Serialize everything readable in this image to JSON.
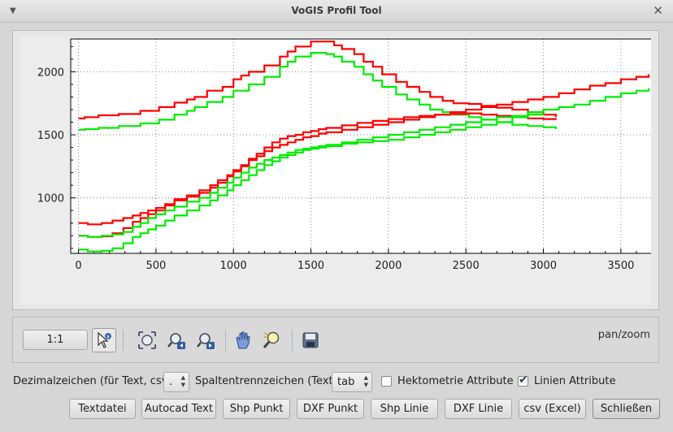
{
  "window": {
    "title": "VoGIS Profil Tool",
    "menu_icon": "chevron-down-icon",
    "close_icon": "close-icon"
  },
  "toolbar": {
    "scale_button": "1:1",
    "mode_label": "pan/zoom",
    "tools": [
      "pointer-info-icon",
      "zoom-extent-icon",
      "zoom-back-icon",
      "zoom-forward-icon",
      "pan-hand-icon",
      "zoom-magnifier-icon",
      "save-floppy-icon"
    ]
  },
  "options": {
    "decimal_label": "Dezimalzeichen (für Text, csv):",
    "decimal_value": ".",
    "separator_label": "Spaltentrennzeichen (Text):",
    "separator_value": "tab",
    "hektometrie_label": "Hektometrie Attribute",
    "hektometrie_checked": false,
    "linien_label": "Linien Attribute",
    "linien_checked": true
  },
  "buttons": {
    "textdatei": "Textdatei",
    "autocad": "Autocad Text",
    "shp_punkt": "Shp Punkt",
    "dxf_punkt": "DXF Punkt",
    "shp_linie": "Shp Linie",
    "dxf_linie": "DXF Linie",
    "csv": "csv (Excel)",
    "close": "Schließen"
  },
  "chart_data": {
    "type": "line",
    "xlim": [
      -50,
      3700
    ],
    "ylim": [
      560,
      2260
    ],
    "x_ticks": [
      0,
      500,
      1000,
      1500,
      2000,
      2500,
      3000,
      3500
    ],
    "y_ticks": [
      1000,
      1500,
      2000
    ],
    "grid": true,
    "step": true,
    "series": [
      {
        "color": "#ff0000",
        "points": [
          [
            0,
            1630
          ],
          [
            40,
            1640
          ],
          [
            130,
            1655
          ],
          [
            260,
            1665
          ],
          [
            400,
            1690
          ],
          [
            520,
            1720
          ],
          [
            620,
            1755
          ],
          [
            700,
            1780
          ],
          [
            750,
            1800
          ],
          [
            830,
            1850
          ],
          [
            930,
            1880
          ],
          [
            1000,
            1940
          ],
          [
            1050,
            1970
          ],
          [
            1100,
            2000
          ],
          [
            1200,
            2050
          ],
          [
            1300,
            2120
          ],
          [
            1350,
            2160
          ],
          [
            1400,
            2200
          ],
          [
            1500,
            2240
          ],
          [
            1600,
            2240
          ],
          [
            1650,
            2210
          ],
          [
            1700,
            2180
          ],
          [
            1780,
            2140
          ],
          [
            1840,
            2080
          ],
          [
            1900,
            2040
          ],
          [
            1960,
            1980
          ],
          [
            2050,
            1920
          ],
          [
            2120,
            1880
          ],
          [
            2200,
            1840
          ],
          [
            2270,
            1800
          ],
          [
            2350,
            1770
          ],
          [
            2420,
            1750
          ],
          [
            2520,
            1745
          ],
          [
            2600,
            1730
          ],
          [
            2700,
            1715
          ],
          [
            2800,
            1700
          ],
          [
            2900,
            1680
          ],
          [
            3000,
            1660
          ],
          [
            3080,
            1640
          ]
        ]
      },
      {
        "color": "#00ee00",
        "points": [
          [
            0,
            1540
          ],
          [
            40,
            1545
          ],
          [
            130,
            1555
          ],
          [
            260,
            1570
          ],
          [
            400,
            1590
          ],
          [
            520,
            1620
          ],
          [
            620,
            1660
          ],
          [
            700,
            1690
          ],
          [
            750,
            1720
          ],
          [
            830,
            1760
          ],
          [
            930,
            1800
          ],
          [
            1000,
            1850
          ],
          [
            1100,
            1900
          ],
          [
            1200,
            1960
          ],
          [
            1300,
            2040
          ],
          [
            1350,
            2080
          ],
          [
            1400,
            2120
          ],
          [
            1500,
            2150
          ],
          [
            1600,
            2140
          ],
          [
            1650,
            2120
          ],
          [
            1700,
            2080
          ],
          [
            1780,
            2040
          ],
          [
            1840,
            1980
          ],
          [
            1900,
            1930
          ],
          [
            1960,
            1880
          ],
          [
            2050,
            1820
          ],
          [
            2120,
            1780
          ],
          [
            2200,
            1740
          ],
          [
            2270,
            1700
          ],
          [
            2350,
            1680
          ],
          [
            2420,
            1660
          ],
          [
            2520,
            1640
          ],
          [
            2600,
            1620
          ],
          [
            2700,
            1600
          ],
          [
            2800,
            1580
          ],
          [
            2900,
            1570
          ],
          [
            3000,
            1560
          ],
          [
            3080,
            1545
          ]
        ]
      },
      {
        "color": "#ff0000",
        "points": [
          [
            0,
            700
          ],
          [
            60,
            690
          ],
          [
            150,
            695
          ],
          [
            220,
            720
          ],
          [
            290,
            760
          ],
          [
            350,
            810
          ],
          [
            400,
            840
          ],
          [
            450,
            870
          ],
          [
            500,
            900
          ],
          [
            560,
            940
          ],
          [
            620,
            980
          ],
          [
            700,
            1010
          ],
          [
            780,
            1040
          ],
          [
            850,
            1080
          ],
          [
            900,
            1120
          ],
          [
            960,
            1170
          ],
          [
            1000,
            1210
          ],
          [
            1050,
            1250
          ],
          [
            1100,
            1300
          ],
          [
            1150,
            1330
          ],
          [
            1200,
            1370
          ],
          [
            1250,
            1400
          ],
          [
            1300,
            1420
          ],
          [
            1350,
            1440
          ],
          [
            1400,
            1460
          ],
          [
            1450,
            1480
          ],
          [
            1500,
            1490
          ],
          [
            1550,
            1510
          ],
          [
            1600,
            1520
          ],
          [
            1700,
            1540
          ],
          [
            1800,
            1560
          ],
          [
            1900,
            1580
          ],
          [
            2000,
            1600
          ],
          [
            2100,
            1620
          ],
          [
            2200,
            1640
          ],
          [
            2300,
            1660
          ],
          [
            2400,
            1680
          ],
          [
            2500,
            1700
          ],
          [
            2600,
            1720
          ],
          [
            2700,
            1740
          ],
          [
            2800,
            1760
          ],
          [
            2900,
            1780
          ],
          [
            3000,
            1800
          ],
          [
            3100,
            1830
          ],
          [
            3200,
            1860
          ],
          [
            3300,
            1890
          ],
          [
            3400,
            1910
          ],
          [
            3500,
            1940
          ],
          [
            3600,
            1960
          ],
          [
            3680,
            1980
          ]
        ]
      },
      {
        "color": "#ff0000",
        "points": [
          [
            0,
            800
          ],
          [
            60,
            790
          ],
          [
            150,
            800
          ],
          [
            220,
            820
          ],
          [
            290,
            840
          ],
          [
            350,
            860
          ],
          [
            400,
            880
          ],
          [
            450,
            900
          ],
          [
            500,
            920
          ],
          [
            560,
            950
          ],
          [
            620,
            990
          ],
          [
            700,
            1020
          ],
          [
            780,
            1060
          ],
          [
            850,
            1100
          ],
          [
            900,
            1140
          ],
          [
            960,
            1180
          ],
          [
            1000,
            1220
          ],
          [
            1050,
            1260
          ],
          [
            1100,
            1310
          ],
          [
            1150,
            1350
          ],
          [
            1200,
            1400
          ],
          [
            1250,
            1440
          ],
          [
            1300,
            1470
          ],
          [
            1350,
            1490
          ],
          [
            1400,
            1500
          ],
          [
            1450,
            1520
          ],
          [
            1500,
            1530
          ],
          [
            1550,
            1545
          ],
          [
            1600,
            1555
          ],
          [
            1700,
            1575
          ],
          [
            1800,
            1595
          ],
          [
            1900,
            1610
          ],
          [
            2000,
            1625
          ],
          [
            2100,
            1640
          ],
          [
            2200,
            1650
          ],
          [
            2300,
            1660
          ],
          [
            2400,
            1665
          ],
          [
            2500,
            1670
          ],
          [
            2600,
            1660
          ],
          [
            2700,
            1650
          ],
          [
            2800,
            1640
          ],
          [
            2900,
            1630
          ],
          [
            3000,
            1625
          ],
          [
            3080,
            1620
          ]
        ]
      },
      {
        "color": "#00ee00",
        "points": [
          [
            0,
            590
          ],
          [
            60,
            575
          ],
          [
            150,
            580
          ],
          [
            220,
            600
          ],
          [
            290,
            640
          ],
          [
            350,
            690
          ],
          [
            400,
            720
          ],
          [
            450,
            750
          ],
          [
            500,
            780
          ],
          [
            560,
            820
          ],
          [
            620,
            860
          ],
          [
            700,
            900
          ],
          [
            780,
            940
          ],
          [
            850,
            980
          ],
          [
            900,
            1020
          ],
          [
            960,
            1060
          ],
          [
            1000,
            1100
          ],
          [
            1050,
            1140
          ],
          [
            1100,
            1180
          ],
          [
            1150,
            1220
          ],
          [
            1200,
            1260
          ],
          [
            1250,
            1290
          ],
          [
            1300,
            1320
          ],
          [
            1350,
            1340
          ],
          [
            1400,
            1360
          ],
          [
            1450,
            1380
          ],
          [
            1500,
            1390
          ],
          [
            1550,
            1400
          ],
          [
            1600,
            1410
          ],
          [
            1700,
            1430
          ],
          [
            1800,
            1440
          ],
          [
            1900,
            1450
          ],
          [
            2000,
            1460
          ],
          [
            2100,
            1480
          ],
          [
            2200,
            1500
          ],
          [
            2300,
            1520
          ],
          [
            2400,
            1540
          ],
          [
            2500,
            1560
          ],
          [
            2600,
            1580
          ],
          [
            2700,
            1600
          ],
          [
            2800,
            1640
          ],
          [
            2900,
            1680
          ],
          [
            3000,
            1700
          ],
          [
            3100,
            1720
          ],
          [
            3200,
            1740
          ],
          [
            3300,
            1770
          ],
          [
            3400,
            1800
          ],
          [
            3500,
            1830
          ],
          [
            3600,
            1850
          ],
          [
            3680,
            1870
          ]
        ]
      },
      {
        "color": "#00ee00",
        "points": [
          [
            0,
            700
          ],
          [
            60,
            690
          ],
          [
            150,
            700
          ],
          [
            220,
            710
          ],
          [
            290,
            730
          ],
          [
            350,
            770
          ],
          [
            400,
            800
          ],
          [
            450,
            840
          ],
          [
            500,
            870
          ],
          [
            560,
            900
          ],
          [
            620,
            930
          ],
          [
            700,
            970
          ],
          [
            780,
            1000
          ],
          [
            850,
            1040
          ],
          [
            900,
            1080
          ],
          [
            960,
            1120
          ],
          [
            1000,
            1160
          ],
          [
            1050,
            1200
          ],
          [
            1100,
            1240
          ],
          [
            1150,
            1270
          ],
          [
            1200,
            1300
          ],
          [
            1250,
            1320
          ],
          [
            1300,
            1340
          ],
          [
            1350,
            1360
          ],
          [
            1400,
            1380
          ],
          [
            1450,
            1390
          ],
          [
            1500,
            1400
          ],
          [
            1550,
            1410
          ],
          [
            1600,
            1420
          ],
          [
            1700,
            1440
          ],
          [
            1800,
            1460
          ],
          [
            1900,
            1480
          ],
          [
            2000,
            1500
          ],
          [
            2100,
            1520
          ],
          [
            2200,
            1540
          ],
          [
            2300,
            1560
          ],
          [
            2400,
            1580
          ],
          [
            2500,
            1600
          ],
          [
            2600,
            1620
          ],
          [
            2700,
            1640
          ],
          [
            2800,
            1650
          ],
          [
            2900,
            1660
          ],
          [
            3000,
            1665
          ]
        ]
      }
    ]
  }
}
